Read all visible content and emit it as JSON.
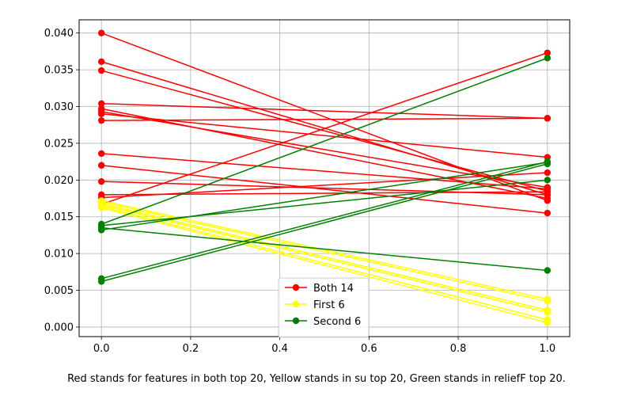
{
  "chart_data": {
    "type": "line",
    "grid": true,
    "legend_position": "bottom-center",
    "xlim": [
      -0.05,
      1.05
    ],
    "ylim": [
      -0.0013,
      0.0418
    ],
    "x_ticks": [
      0.0,
      0.2,
      0.4,
      0.6,
      0.8,
      1.0
    ],
    "x_tick_labels": [
      "0.0",
      "0.2",
      "0.4",
      "0.6",
      "0.8",
      "1.0"
    ],
    "y_ticks": [
      0.0,
      0.005,
      0.01,
      0.015,
      0.02,
      0.025,
      0.03,
      0.035,
      0.04
    ],
    "y_tick_labels": [
      "0.000",
      "0.005",
      "0.010",
      "0.015",
      "0.020",
      "0.025",
      "0.030",
      "0.035",
      "0.040"
    ],
    "groups": [
      {
        "name": "Both 14",
        "color": "#ff0000",
        "lines": [
          [
            0.04,
            0.0172
          ],
          [
            0.0361,
            0.018
          ],
          [
            0.0349,
            0.0185
          ],
          [
            0.0304,
            0.0284
          ],
          [
            0.0297,
            0.0175
          ],
          [
            0.0293,
            0.019
          ],
          [
            0.029,
            0.0231
          ],
          [
            0.0281,
            0.0284
          ],
          [
            0.0236,
            0.0188
          ],
          [
            0.022,
            0.0155
          ],
          [
            0.0198,
            0.018
          ],
          [
            0.018,
            0.0184
          ],
          [
            0.0176,
            0.021
          ],
          [
            0.0167,
            0.0373
          ]
        ]
      },
      {
        "name": "First 6",
        "color": "#ffff00",
        "lines": [
          [
            0.0172,
            0.0038
          ],
          [
            0.017,
            0.0035
          ],
          [
            0.0168,
            0.0023
          ],
          [
            0.0166,
            0.002
          ],
          [
            0.0164,
            0.001
          ],
          [
            0.0162,
            0.0006
          ]
        ]
      },
      {
        "name": "Second 6",
        "color": "#008000",
        "lines": [
          [
            0.014,
            0.0366
          ],
          [
            0.0138,
            0.02
          ],
          [
            0.0135,
            0.0077
          ],
          [
            0.0132,
            0.0224
          ],
          [
            0.0066,
            0.0225
          ],
          [
            0.0062,
            0.0222
          ]
        ]
      }
    ]
  },
  "caption": "Red stands for features in both top 20, Yellow stands in su top 20, Green stands in reliefF top 20."
}
